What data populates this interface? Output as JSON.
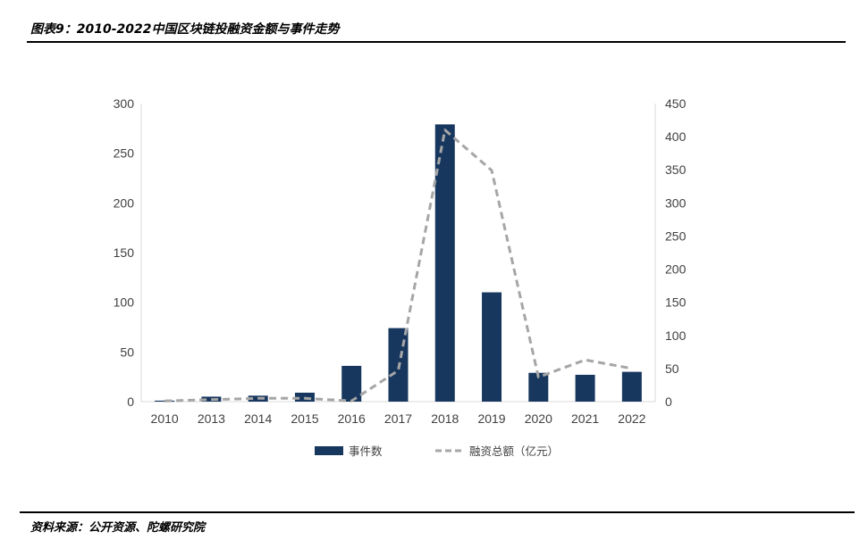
{
  "header": {
    "title": "图表9：2010-2022中国区块链投融资金额与事件走势"
  },
  "footer": {
    "source": "资料来源：公开资源、陀螺研究院"
  },
  "chart_data": {
    "type": "bar",
    "categories": [
      "2010",
      "2013",
      "2014",
      "2015",
      "2016",
      "2017",
      "2018",
      "2019",
      "2020",
      "2021",
      "2022"
    ],
    "series": [
      {
        "name": "事件数",
        "type": "bar",
        "axis": "left",
        "color": "#17375e",
        "values": [
          1,
          5,
          6,
          9,
          36,
          74,
          279,
          110,
          29,
          27,
          30
        ]
      },
      {
        "name": "融资总额（亿元）",
        "type": "line",
        "style": "dashed",
        "axis": "right",
        "color": "#a6a6a6",
        "values": [
          1,
          3,
          5,
          5,
          1,
          47,
          410,
          349,
          37,
          63,
          50
        ]
      }
    ],
    "y_left": {
      "min": 0,
      "max": 300,
      "ticks": [
        "0",
        "50",
        "100",
        "150",
        "200",
        "250",
        "300"
      ]
    },
    "y_right": {
      "min": 0,
      "max": 450,
      "ticks": [
        "0",
        "50",
        "100",
        "150",
        "200",
        "250",
        "300",
        "350",
        "400",
        "450"
      ]
    },
    "grid": false,
    "legend_position": "bottom"
  }
}
